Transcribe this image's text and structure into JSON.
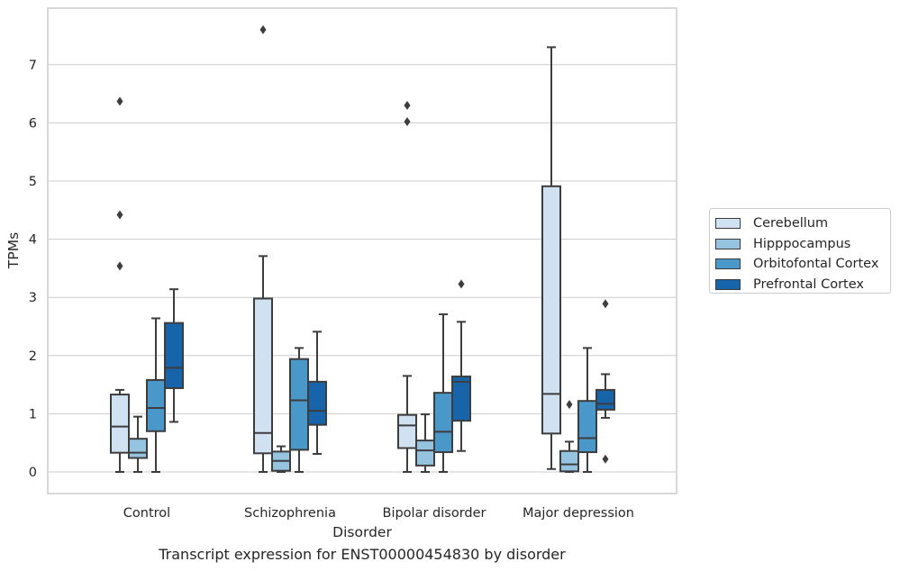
{
  "caption": "Transcript expression for ENST00000454830 by disorder",
  "chart_data": {
    "type": "box",
    "xlabel": "Disorder",
    "ylabel": "TPMs",
    "ylim": [
      -0.35,
      7.9
    ],
    "yticks": [
      0,
      1,
      2,
      3,
      4,
      5,
      6,
      7
    ],
    "grid": true,
    "legend_position": "right",
    "categories": [
      "Control",
      "Schizophrenia",
      "Bipolar disorder",
      "Major depression"
    ],
    "series": [
      {
        "name": "Cerebellum",
        "color": "#d0e1f2",
        "boxes": [
          {
            "whisker_low": 0.0,
            "q1": 0.33,
            "median": 0.78,
            "q3": 1.33,
            "whisker_high": 1.41,
            "outliers": [
              3.54,
              4.42,
              6.37
            ]
          },
          {
            "whisker_low": 0.0,
            "q1": 0.32,
            "median": 0.67,
            "q3": 2.98,
            "whisker_high": 3.71,
            "outliers": [
              7.6
            ]
          },
          {
            "whisker_low": 0.0,
            "q1": 0.41,
            "median": 0.8,
            "q3": 0.98,
            "whisker_high": 1.65,
            "outliers": [
              6.02,
              6.3
            ]
          },
          {
            "whisker_low": 0.05,
            "q1": 0.66,
            "median": 1.34,
            "q3": 4.91,
            "whisker_high": 7.3,
            "outliers": []
          }
        ]
      },
      {
        "name": "Hipppocampus",
        "color": "#94c4df",
        "boxes": [
          {
            "whisker_low": 0.0,
            "q1": 0.24,
            "median": 0.33,
            "q3": 0.57,
            "whisker_high": 0.95,
            "outliers": []
          },
          {
            "whisker_low": 0.0,
            "q1": 0.02,
            "median": 0.19,
            "q3": 0.35,
            "whisker_high": 0.44,
            "outliers": []
          },
          {
            "whisker_low": 0.0,
            "q1": 0.11,
            "median": 0.37,
            "q3": 0.54,
            "whisker_high": 0.99,
            "outliers": []
          },
          {
            "whisker_low": 0.0,
            "q1": 0.01,
            "median": 0.13,
            "q3": 0.36,
            "whisker_high": 0.52,
            "outliers": [
              1.16
            ]
          }
        ]
      },
      {
        "name": "Orbitofontal Cortex",
        "color": "#4a98c9",
        "boxes": [
          {
            "whisker_low": 0.0,
            "q1": 0.7,
            "median": 1.1,
            "q3": 1.58,
            "whisker_high": 2.64,
            "outliers": []
          },
          {
            "whisker_low": 0.0,
            "q1": 0.38,
            "median": 1.23,
            "q3": 1.94,
            "whisker_high": 2.13,
            "outliers": []
          },
          {
            "whisker_low": 0.0,
            "q1": 0.34,
            "median": 0.69,
            "q3": 1.36,
            "whisker_high": 2.71,
            "outliers": []
          },
          {
            "whisker_low": 0.0,
            "q1": 0.34,
            "median": 0.58,
            "q3": 1.22,
            "whisker_high": 2.13,
            "outliers": []
          }
        ]
      },
      {
        "name": "Prefrontal Cortex",
        "color": "#1764ab",
        "boxes": [
          {
            "whisker_low": 0.86,
            "q1": 1.44,
            "median": 1.79,
            "q3": 2.56,
            "whisker_high": 3.14,
            "outliers": []
          },
          {
            "whisker_low": 0.31,
            "q1": 0.81,
            "median": 1.05,
            "q3": 1.55,
            "whisker_high": 2.41,
            "outliers": []
          },
          {
            "whisker_low": 0.36,
            "q1": 0.88,
            "median": 1.55,
            "q3": 1.64,
            "whisker_high": 2.58,
            "outliers": [
              3.23
            ]
          },
          {
            "whisker_low": 0.93,
            "q1": 1.07,
            "median": 1.17,
            "q3": 1.41,
            "whisker_high": 1.68,
            "outliers": [
              0.22,
              2.89
            ]
          }
        ]
      }
    ]
  }
}
